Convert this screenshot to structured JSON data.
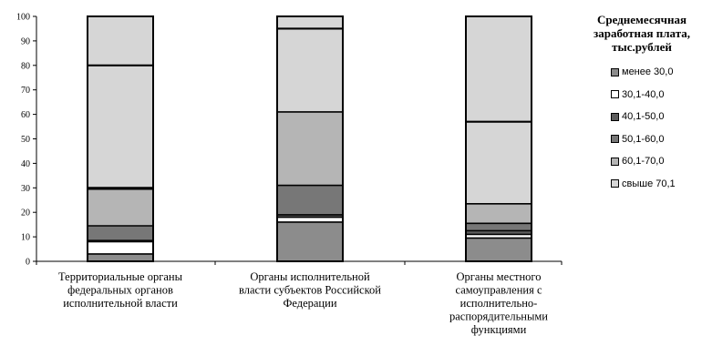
{
  "chart_data": {
    "type": "bar",
    "stacked": true,
    "categories": [
      [
        "Территориальные органы",
        "федеральных органов",
        "исполнительной власти"
      ],
      [
        "Органы исполнительной",
        "власти субъектов Российской",
        "Федерации"
      ],
      [
        "Органы местного",
        "самоуправления с",
        "исполнительно-",
        "распорядительными",
        "функциями"
      ]
    ],
    "series": [
      {
        "name": "менее 30,0",
        "values": [
          3,
          16,
          9.5
        ],
        "color": "#8c8c8c"
      },
      {
        "name": "30,1-40,0",
        "values": [
          5,
          2,
          1.5
        ],
        "color": "#ffffff"
      },
      {
        "name": "40,1-50,0",
        "values": [
          0.5,
          1,
          1.5
        ],
        "color": "#5c5c5c"
      },
      {
        "name": "50,1-60,0",
        "values": [
          6,
          12,
          3
        ],
        "color": "#777777"
      },
      {
        "name": "60,1-70,0",
        "values": [
          15,
          30,
          8
        ],
        "color": "#b5b5b5"
      },
      {
        "name": "свыше 70,1",
        "values": [
          70.5,
          39,
          76.5
        ],
        "color": "#d6d6d6"
      }
    ],
    "divider_lines_at": [
      [
        30,
        80
      ],
      [
        95
      ],
      [
        57
      ]
    ],
    "ylim": [
      0,
      100
    ],
    "yticks": [
      "0",
      "10",
      "20",
      "30",
      "40",
      "50",
      "60",
      "70",
      "80",
      "90",
      "100"
    ],
    "legend_title": "Среднемесячная заработная плата, тыс.рублей",
    "legend_position": "right",
    "grid": false
  }
}
